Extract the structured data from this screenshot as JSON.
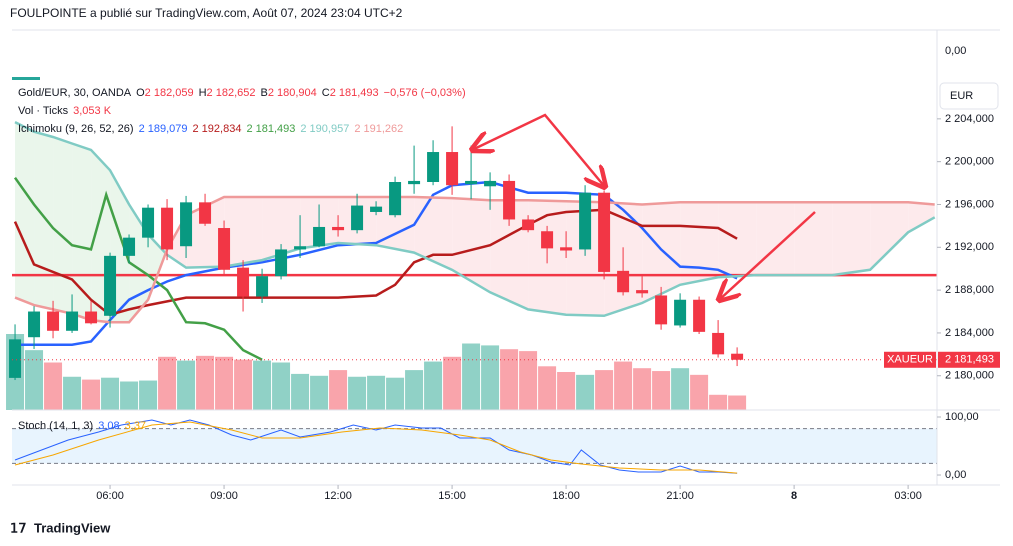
{
  "header": "FOULPOINTE a publié sur TradingView.com, Août 07, 2024 23:04 UTC+2",
  "footer": "TradingView",
  "chart_data": {
    "type": "candlestick",
    "symbol": "Gold/EUR, 30, OANDA",
    "ohlc_legend": [
      {
        "key": "O",
        "value": "2 182,059"
      },
      {
        "key": "H",
        "value": "2 182,652"
      },
      {
        "key": "B",
        "value": "2 180,904"
      },
      {
        "key": "C",
        "value": "2 181,493"
      }
    ],
    "change": "−0,576 (−0,03%)",
    "volume_legend": {
      "name": "Vol · Ticks",
      "value": "3,053 K"
    },
    "ichimoku_legend": {
      "name": "Ichimoku (9, 26, 52, 26)",
      "values": [
        "2 189,079",
        "2 192,834",
        "2 181,493",
        "2 190,957",
        "2 191,262"
      ]
    },
    "currency": "EUR",
    "top_scale_label": "0,00",
    "x": [
      3.5,
      4,
      4.5,
      5,
      5.5,
      6,
      6.5,
      7,
      7.5,
      8,
      8.5,
      9,
      9.5,
      10,
      10.5,
      11,
      11.5,
      12,
      12.5,
      13,
      13.5,
      14,
      14.5,
      15,
      15.5,
      16,
      16.5,
      17,
      17.5,
      18,
      18.5,
      19,
      19.5,
      20,
      20.5,
      21,
      21.5,
      22,
      22.5
    ],
    "open": [
      2179.8,
      2183.6,
      2186,
      2184.2,
      2186,
      2185.6,
      2191.2,
      2192.9,
      2195.7,
      2192.1,
      2196.2,
      2193.8,
      2190.1,
      2187.4,
      2189.3,
      2191.8,
      2192.1,
      2193.9,
      2193.6,
      2195.3,
      2195,
      2197.9,
      2198.1,
      2200.9,
      2197.9,
      2197.7,
      2198.2,
      2194.6,
      2193.5,
      2192,
      2191.8,
      2197.1,
      2189.8,
      2188,
      2187.5,
      2184.7,
      2187.1,
      2184,
      2182.059
    ],
    "high": [
      2184.8,
      2186.5,
      2187,
      2187.6,
      2187,
      2191.5,
      2193.2,
      2196,
      2196.5,
      2196.8,
      2197,
      2194.5,
      2190.8,
      2190,
      2192.3,
      2195,
      2196,
      2195,
      2197,
      2196.3,
      2198.6,
      2201.5,
      2202,
      2203.3,
      2201.5,
      2199,
      2198.8,
      2195,
      2194,
      2193.5,
      2197.8,
      2197.3,
      2192,
      2189.3,
      2188.3,
      2187.7,
      2187.4,
      2185.2,
      2182.652
    ],
    "low": [
      2179.6,
      2182.5,
      2183.5,
      2184,
      2184.8,
      2184.5,
      2190.5,
      2192,
      2190.8,
      2191,
      2194,
      2189.5,
      2186,
      2186.8,
      2189,
      2191,
      2192,
      2193,
      2193.3,
      2195,
      2194.8,
      2197,
      2197.8,
      2196.9,
      2196.5,
      2195.5,
      2194,
      2193.4,
      2190.5,
      2191,
      2191.2,
      2189,
      2187.5,
      2187.3,
      2184.3,
      2184.5,
      2183.9,
      2181.7,
      2180.904
    ],
    "close": [
      2183.4,
      2186,
      2184.2,
      2186,
      2184.9,
      2191.2,
      2192.9,
      2195.7,
      2191.8,
      2196.2,
      2194.2,
      2189.9,
      2187.4,
      2189.3,
      2191.8,
      2192.1,
      2193.9,
      2193.6,
      2195.9,
      2195.8,
      2198.1,
      2198.2,
      2200.9,
      2197.8,
      2198.2,
      2198.2,
      2194.6,
      2193.6,
      2191.9,
      2191.7,
      2197.1,
      2189.7,
      2187.8,
      2187.7,
      2184.8,
      2187.1,
      2184.1,
      2182,
      2181.493
    ],
    "volume": [
      16,
      12.6,
      10,
      7,
      6.4,
      6.8,
      6,
      6.2,
      11.2,
      10.4,
      11.4,
      11.2,
      10.6,
      10.4,
      10,
      7.6,
      7.2,
      8.4,
      7,
      7.2,
      6.8,
      8.4,
      10.2,
      11.2,
      14,
      13.6,
      12.8,
      12.4,
      9.2,
      8,
      7.4,
      8.4,
      10.2,
      8.8,
      8.2,
      8.8,
      7.4,
      3.2,
      3.053
    ],
    "up_color": "#089981",
    "down_color": "#f23645",
    "xlim": [
      3.42,
      27.76
    ],
    "xticks": [
      {
        "value": 6,
        "label": "06:00"
      },
      {
        "value": 9,
        "label": "09:00"
      },
      {
        "value": 12,
        "label": "12:00"
      },
      {
        "value": 15,
        "label": "15:00"
      },
      {
        "value": 18,
        "label": "18:00"
      },
      {
        "value": 21,
        "label": "21:00"
      },
      {
        "value": 24,
        "label": "8"
      },
      {
        "value": 27,
        "label": "03:00"
      }
    ],
    "ylim": [
      2176.8,
      2212.3
    ],
    "yticks": [
      {
        "value": 2180,
        "label": "2 180,000"
      },
      {
        "value": 2184,
        "label": "2 184,000"
      },
      {
        "value": 2188,
        "label": "2 188,000"
      },
      {
        "value": 2192,
        "label": "2 192,000"
      },
      {
        "value": 2196,
        "label": "2 196,000"
      },
      {
        "value": 2200,
        "label": "2 200,000"
      },
      {
        "value": 2204,
        "label": "2 204,000"
      }
    ],
    "volume_ylim": [
      0,
      80
    ],
    "grid": false,
    "lines": [
      {
        "color": "#2962ff",
        "x": [
          3.5,
          4,
          4.5,
          5,
          5.5,
          6,
          6.5,
          7,
          7.5,
          8,
          9,
          10,
          11,
          12,
          13,
          14,
          14.5,
          15,
          16,
          17,
          18,
          19,
          19.5,
          20,
          20.5,
          21,
          21.5,
          22,
          22.5
        ],
        "values": [
          2182.9,
          2182.9,
          2182.9,
          2182.9,
          2183.2,
          2185.2,
          2187.1,
          2188,
          2188.8,
          2189.4,
          2190.1,
          2190.6,
          2191.3,
          2192.2,
          2192.4,
          2194.1,
          2196.9,
          2197.8,
          2198.1,
          2197.1,
          2197.1,
          2196.9,
          2195.5,
          2193.8,
          2191.8,
          2190.2,
          2190.1,
          2189.9,
          2189.1
        ]
      },
      {
        "color": "#b71c1c",
        "x": [
          3.5,
          4,
          4.5,
          5,
          5.5,
          6,
          6.5,
          7,
          8,
          9,
          10,
          11,
          12,
          13,
          13.5,
          14,
          14.5,
          15,
          16,
          17,
          17.5,
          18,
          19,
          20,
          21,
          22,
          22.5
        ],
        "values": [
          2194.4,
          2190.4,
          2189.7,
          2189,
          2187.1,
          2185.7,
          2186.2,
          2186.6,
          2187.3,
          2187.3,
          2187.3,
          2187.3,
          2187.3,
          2187.5,
          2188.5,
          2190.6,
          2191.3,
          2191.3,
          2192.2,
          2194.1,
          2195,
          2195.3,
          2195.5,
          2194,
          2194,
          2193.8,
          2192.8
        ]
      },
      {
        "color": "#43a047",
        "x": [
          3.5,
          4,
          4.5,
          5,
          5.5,
          5.9,
          6.5,
          7,
          7.5,
          8,
          8.5,
          9,
          9.5,
          10
        ],
        "values": [
          2198.5,
          2196,
          2193.8,
          2192.2,
          2191.8,
          2196.9,
          2190.6,
          2189.4,
          2188,
          2185,
          2184.9,
          2184.3,
          2182.4,
          2181.5
        ]
      },
      {
        "color": "#80cbc4",
        "x": [
          3.5,
          4,
          4.5,
          5,
          5.5,
          6,
          6.5,
          7,
          7.5,
          8,
          9,
          10,
          11,
          12,
          13,
          14,
          15,
          16,
          17,
          18,
          19,
          20,
          21,
          22,
          23,
          24,
          25,
          26,
          27,
          27.7
        ],
        "values": [
          2203.7,
          2202.8,
          2202.3,
          2201.7,
          2201.1,
          2199.2,
          2196,
          2193.2,
          2191.3,
          2190.1,
          2190.2,
          2190.8,
          2191.9,
          2192.4,
          2192.2,
          2191.5,
          2189.9,
          2187.8,
          2186.2,
          2185.7,
          2185.6,
          2186.8,
          2188.5,
          2189.2,
          2189.4,
          2189.4,
          2189.4,
          2189.9,
          2193.4,
          2194.8
        ]
      },
      {
        "color": "#ef9a9a",
        "x": [
          3.5,
          4,
          4.5,
          5,
          5.5,
          6,
          6.5,
          7,
          7.5,
          8,
          9,
          10,
          11,
          12,
          13,
          14,
          15,
          16,
          17,
          18,
          19,
          20,
          21,
          22,
          23,
          24,
          25,
          26,
          27,
          27.7
        ],
        "values": [
          2187.3,
          2186.6,
          2186.2,
          2185.8,
          2185.2,
          2185,
          2185,
          2187.1,
          2191.8,
          2195,
          2196.7,
          2196.7,
          2196.7,
          2196.7,
          2196.7,
          2196.7,
          2196.6,
          2196.4,
          2196.4,
          2196.3,
          2196.2,
          2196,
          2196.2,
          2196.2,
          2196.2,
          2196.2,
          2196.2,
          2196.2,
          2196.2,
          2196
        ]
      }
    ],
    "cloud_colors": [
      "#e8f5e9",
      "#fde8ea"
    ],
    "hline": {
      "value": 2189.4,
      "color": "#f23645"
    },
    "price_tag": {
      "symbol": "XAUEUR",
      "label": "2 181,493",
      "value": 2181.493
    },
    "stoch": {
      "title": "Stoch (14, 1, 3)",
      "legend_values": [
        "3,08",
        "3,37"
      ],
      "ylim": [
        -17.2,
        108.6
      ],
      "yticks": [
        {
          "value": 100,
          "label": "100,00"
        },
        {
          "value": 0,
          "label": "0,00"
        }
      ],
      "bands": [
        80,
        20
      ],
      "series": [
        {
          "color": "#2962ff",
          "x": [
            3.5,
            4.2,
            4.9,
            5.7,
            6.3,
            7.1,
            7.6,
            8.1,
            8.6,
            9.2,
            9.7,
            10.5,
            11,
            11.8,
            12.4,
            13,
            13.5,
            14.2,
            14.7,
            15.2,
            16,
            16.5,
            17.1,
            17.6,
            18.1,
            18.4,
            18.9,
            19.4,
            19.9,
            20.5,
            21,
            21.5,
            22,
            22.5
          ],
          "values": [
            25.9,
            43.1,
            60.3,
            74.1,
            86.2,
            94.8,
            86.2,
            94.8,
            86.2,
            69,
            60.3,
            77.6,
            65.5,
            74.1,
            86.2,
            77.6,
            86.2,
            81,
            81,
            63.8,
            63.8,
            43.1,
            34.5,
            22.4,
            17.2,
            43.1,
            17.2,
            8.6,
            5.2,
            5.2,
            15.5,
            5.2,
            5.2,
            3.08
          ]
        },
        {
          "color": "#f7a600",
          "x": [
            3.5,
            4.5,
            5.7,
            7.1,
            8.1,
            9.2,
            10,
            11,
            12.1,
            13.1,
            14.2,
            15.2,
            16,
            16.8,
            17.6,
            18.4,
            19.4,
            20.5,
            21.5,
            22.5
          ],
          "values": [
            17.2,
            34.5,
            60.3,
            86.2,
            91.4,
            77.6,
            63.8,
            63.8,
            74.1,
            81,
            77.6,
            69,
            60.3,
            39.7,
            25.9,
            19,
            12.1,
            8.6,
            8.6,
            3.37
          ]
        }
      ]
    }
  }
}
